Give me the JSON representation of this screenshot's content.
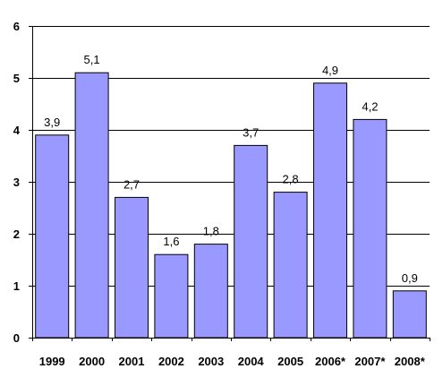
{
  "chart_data": {
    "type": "bar",
    "categories": [
      "1999",
      "2000",
      "2001",
      "2002",
      "2003",
      "2004",
      "2005",
      "2006*",
      "2007*",
      "2008*"
    ],
    "values": [
      3.9,
      5.1,
      2.7,
      1.6,
      1.8,
      3.7,
      2.8,
      4.9,
      4.2,
      0.9
    ],
    "data_labels": [
      "3,9",
      "5,1",
      "2,7",
      "1,6",
      "1,8",
      "3,7",
      "2,8",
      "4,9",
      "4,2",
      "0,9"
    ],
    "title": "",
    "xlabel": "",
    "ylabel": "",
    "ylim": [
      0,
      6
    ],
    "yticks": [
      0,
      1,
      2,
      3,
      4,
      5,
      6
    ],
    "ytick_labels": [
      "0",
      "1",
      "2",
      "3",
      "4",
      "5",
      "6"
    ],
    "grid": true,
    "legend": "none",
    "colors": {
      "bar_fill": "#9999ff",
      "bar_stroke": "#000000",
      "grid": "#000000",
      "axis": "#000000",
      "text": "#000000"
    }
  }
}
